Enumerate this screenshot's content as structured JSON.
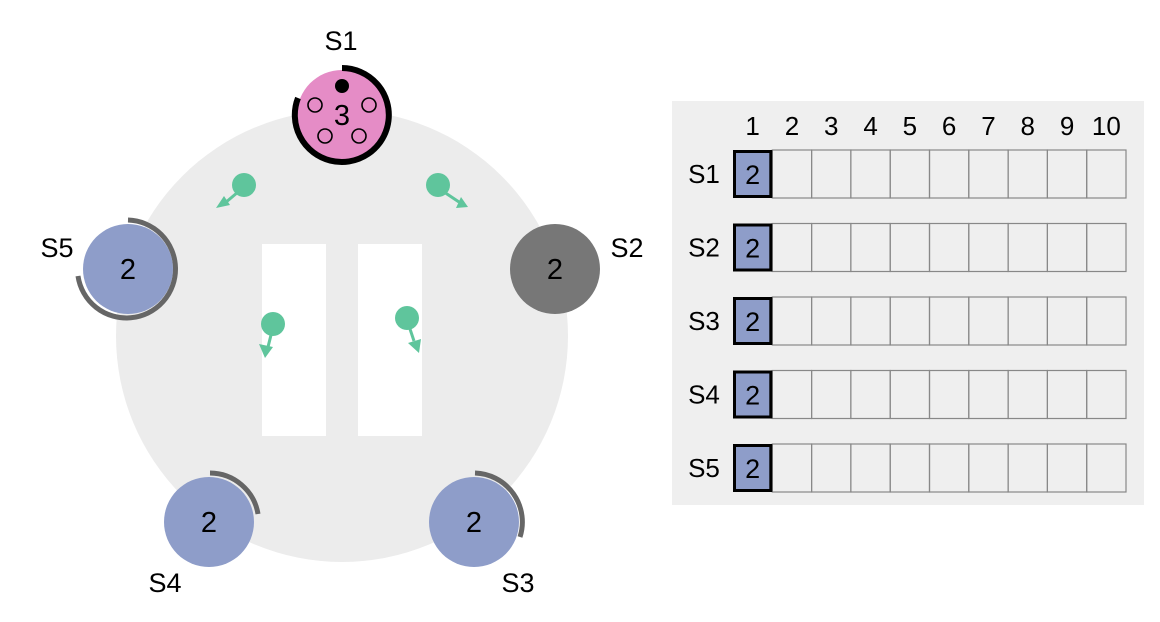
{
  "colors": {
    "ring_background": "#ececec",
    "leader": "#e58cc6",
    "follower": "#8e9dc9",
    "crashed": "#777777",
    "message": "#5fc59c",
    "timer_arc_leader": "#000000",
    "timer_arc_follower": "#666666",
    "log_panel_background": "#efefef",
    "log_cell_border": "#888888",
    "log_entry_fill": "#8e9dc9"
  },
  "servers": [
    {
      "id": "S1",
      "name": "S1",
      "term": "3",
      "state": "leader"
    },
    {
      "id": "S2",
      "name": "S2",
      "term": "2",
      "state": "crashed"
    },
    {
      "id": "S3",
      "name": "S3",
      "term": "2",
      "state": "follower"
    },
    {
      "id": "S4",
      "name": "S4",
      "term": "2",
      "state": "follower"
    },
    {
      "id": "S5",
      "name": "S5",
      "term": "2",
      "state": "follower"
    }
  ],
  "leader_votes": {
    "granted": 1,
    "pending": 4
  },
  "log": {
    "index_headers": [
      "1",
      "2",
      "3",
      "4",
      "5",
      "6",
      "7",
      "8",
      "9",
      "10"
    ],
    "rows": [
      {
        "server": "S1",
        "entries": [
          "2"
        ]
      },
      {
        "server": "S2",
        "entries": [
          "2"
        ]
      },
      {
        "server": "S3",
        "entries": [
          "2"
        ]
      },
      {
        "server": "S4",
        "entries": [
          "2"
        ]
      },
      {
        "server": "S5",
        "entries": [
          "2"
        ]
      }
    ]
  }
}
